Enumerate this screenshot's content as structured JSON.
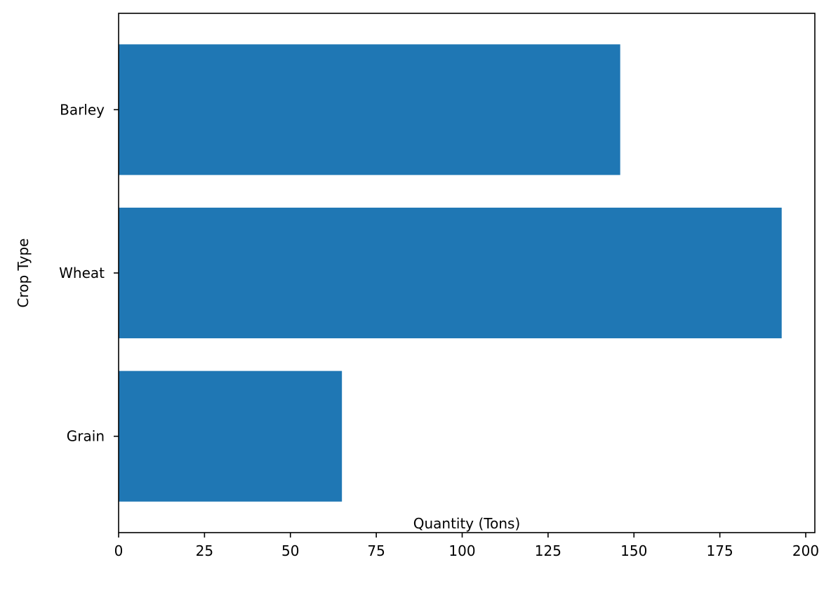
{
  "chart_data": {
    "type": "bar",
    "orientation": "horizontal",
    "categories": [
      "Grain",
      "Wheat",
      "Barley"
    ],
    "values": [
      65,
      193,
      146
    ],
    "title": "",
    "xlabel": "Quantity (Tons)",
    "ylabel": "Crop Type",
    "xlim": [
      0,
      202.65
    ],
    "xticks": [
      0,
      25,
      50,
      75,
      100,
      125,
      150,
      175,
      200
    ],
    "grid": false,
    "legend": "none",
    "bar_color": "#1f77b4"
  }
}
